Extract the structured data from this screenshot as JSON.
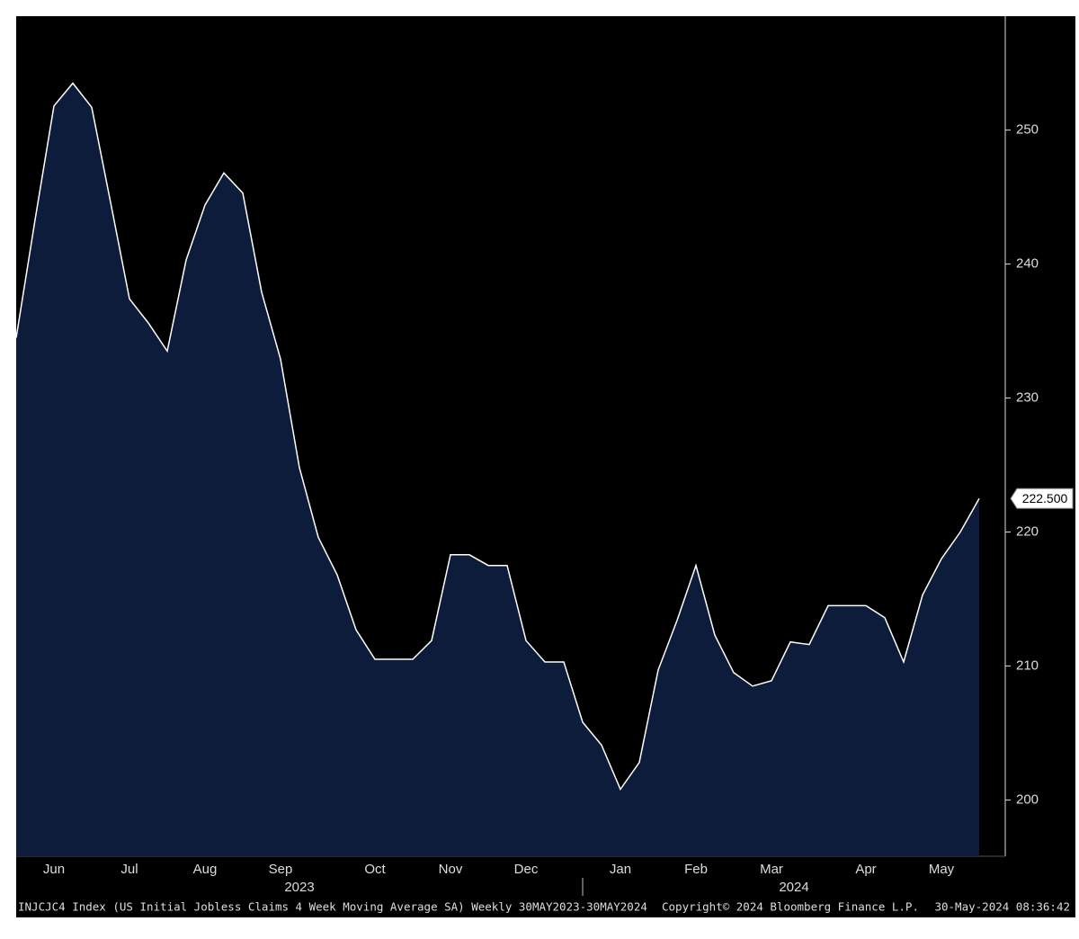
{
  "chart_data": {
    "type": "area",
    "categories": [
      null,
      null,
      "Jun",
      null,
      null,
      null,
      "Jul",
      null,
      null,
      null,
      "Aug",
      null,
      null,
      null,
      "Sep",
      null,
      null,
      null,
      null,
      "Oct",
      null,
      null,
      null,
      "Nov",
      null,
      null,
      null,
      "Dec",
      null,
      null,
      null,
      null,
      "Jan",
      null,
      null,
      null,
      "Feb",
      null,
      null,
      null,
      "Mar",
      null,
      null,
      null,
      null,
      "Apr",
      null,
      null,
      null,
      "May",
      null,
      null
    ],
    "values": [
      234.5,
      243.3,
      251.8,
      253.5,
      251.7,
      244.6,
      237.4,
      235.6,
      233.5,
      240.3,
      244.4,
      246.8,
      245.3,
      237.9,
      232.9,
      224.8,
      219.6,
      216.8,
      212.7,
      210.5,
      210.5,
      210.5,
      211.9,
      218.3,
      218.3,
      217.5,
      217.5,
      211.9,
      210.3,
      210.3,
      205.8,
      204.1,
      200.8,
      202.8,
      209.7,
      213.4,
      217.5,
      212.3,
      209.5,
      208.5,
      208.9,
      211.8,
      211.6,
      214.5,
      214.5,
      214.5,
      213.6,
      210.3,
      215.3,
      218.0,
      220.0,
      222.5
    ],
    "last_value_label": "222.500",
    "year_labels": [
      "2023",
      "2024"
    ],
    "ylim": [
      195.8,
      258.5
    ],
    "yticks": [
      200,
      210,
      220,
      230,
      240,
      250
    ],
    "line_color": "#ffffff",
    "fill_color": "#0c1c3a",
    "footer": {
      "description": "INJCJC4 Index (US Initial Jobless Claims 4 Week Moving Average SA)  Weekly 30MAY2023-30MAY2024",
      "copyright": "Copyright© 2024 Bloomberg Finance L.P.",
      "timestamp": "30-May-2024 08:36:42"
    }
  }
}
